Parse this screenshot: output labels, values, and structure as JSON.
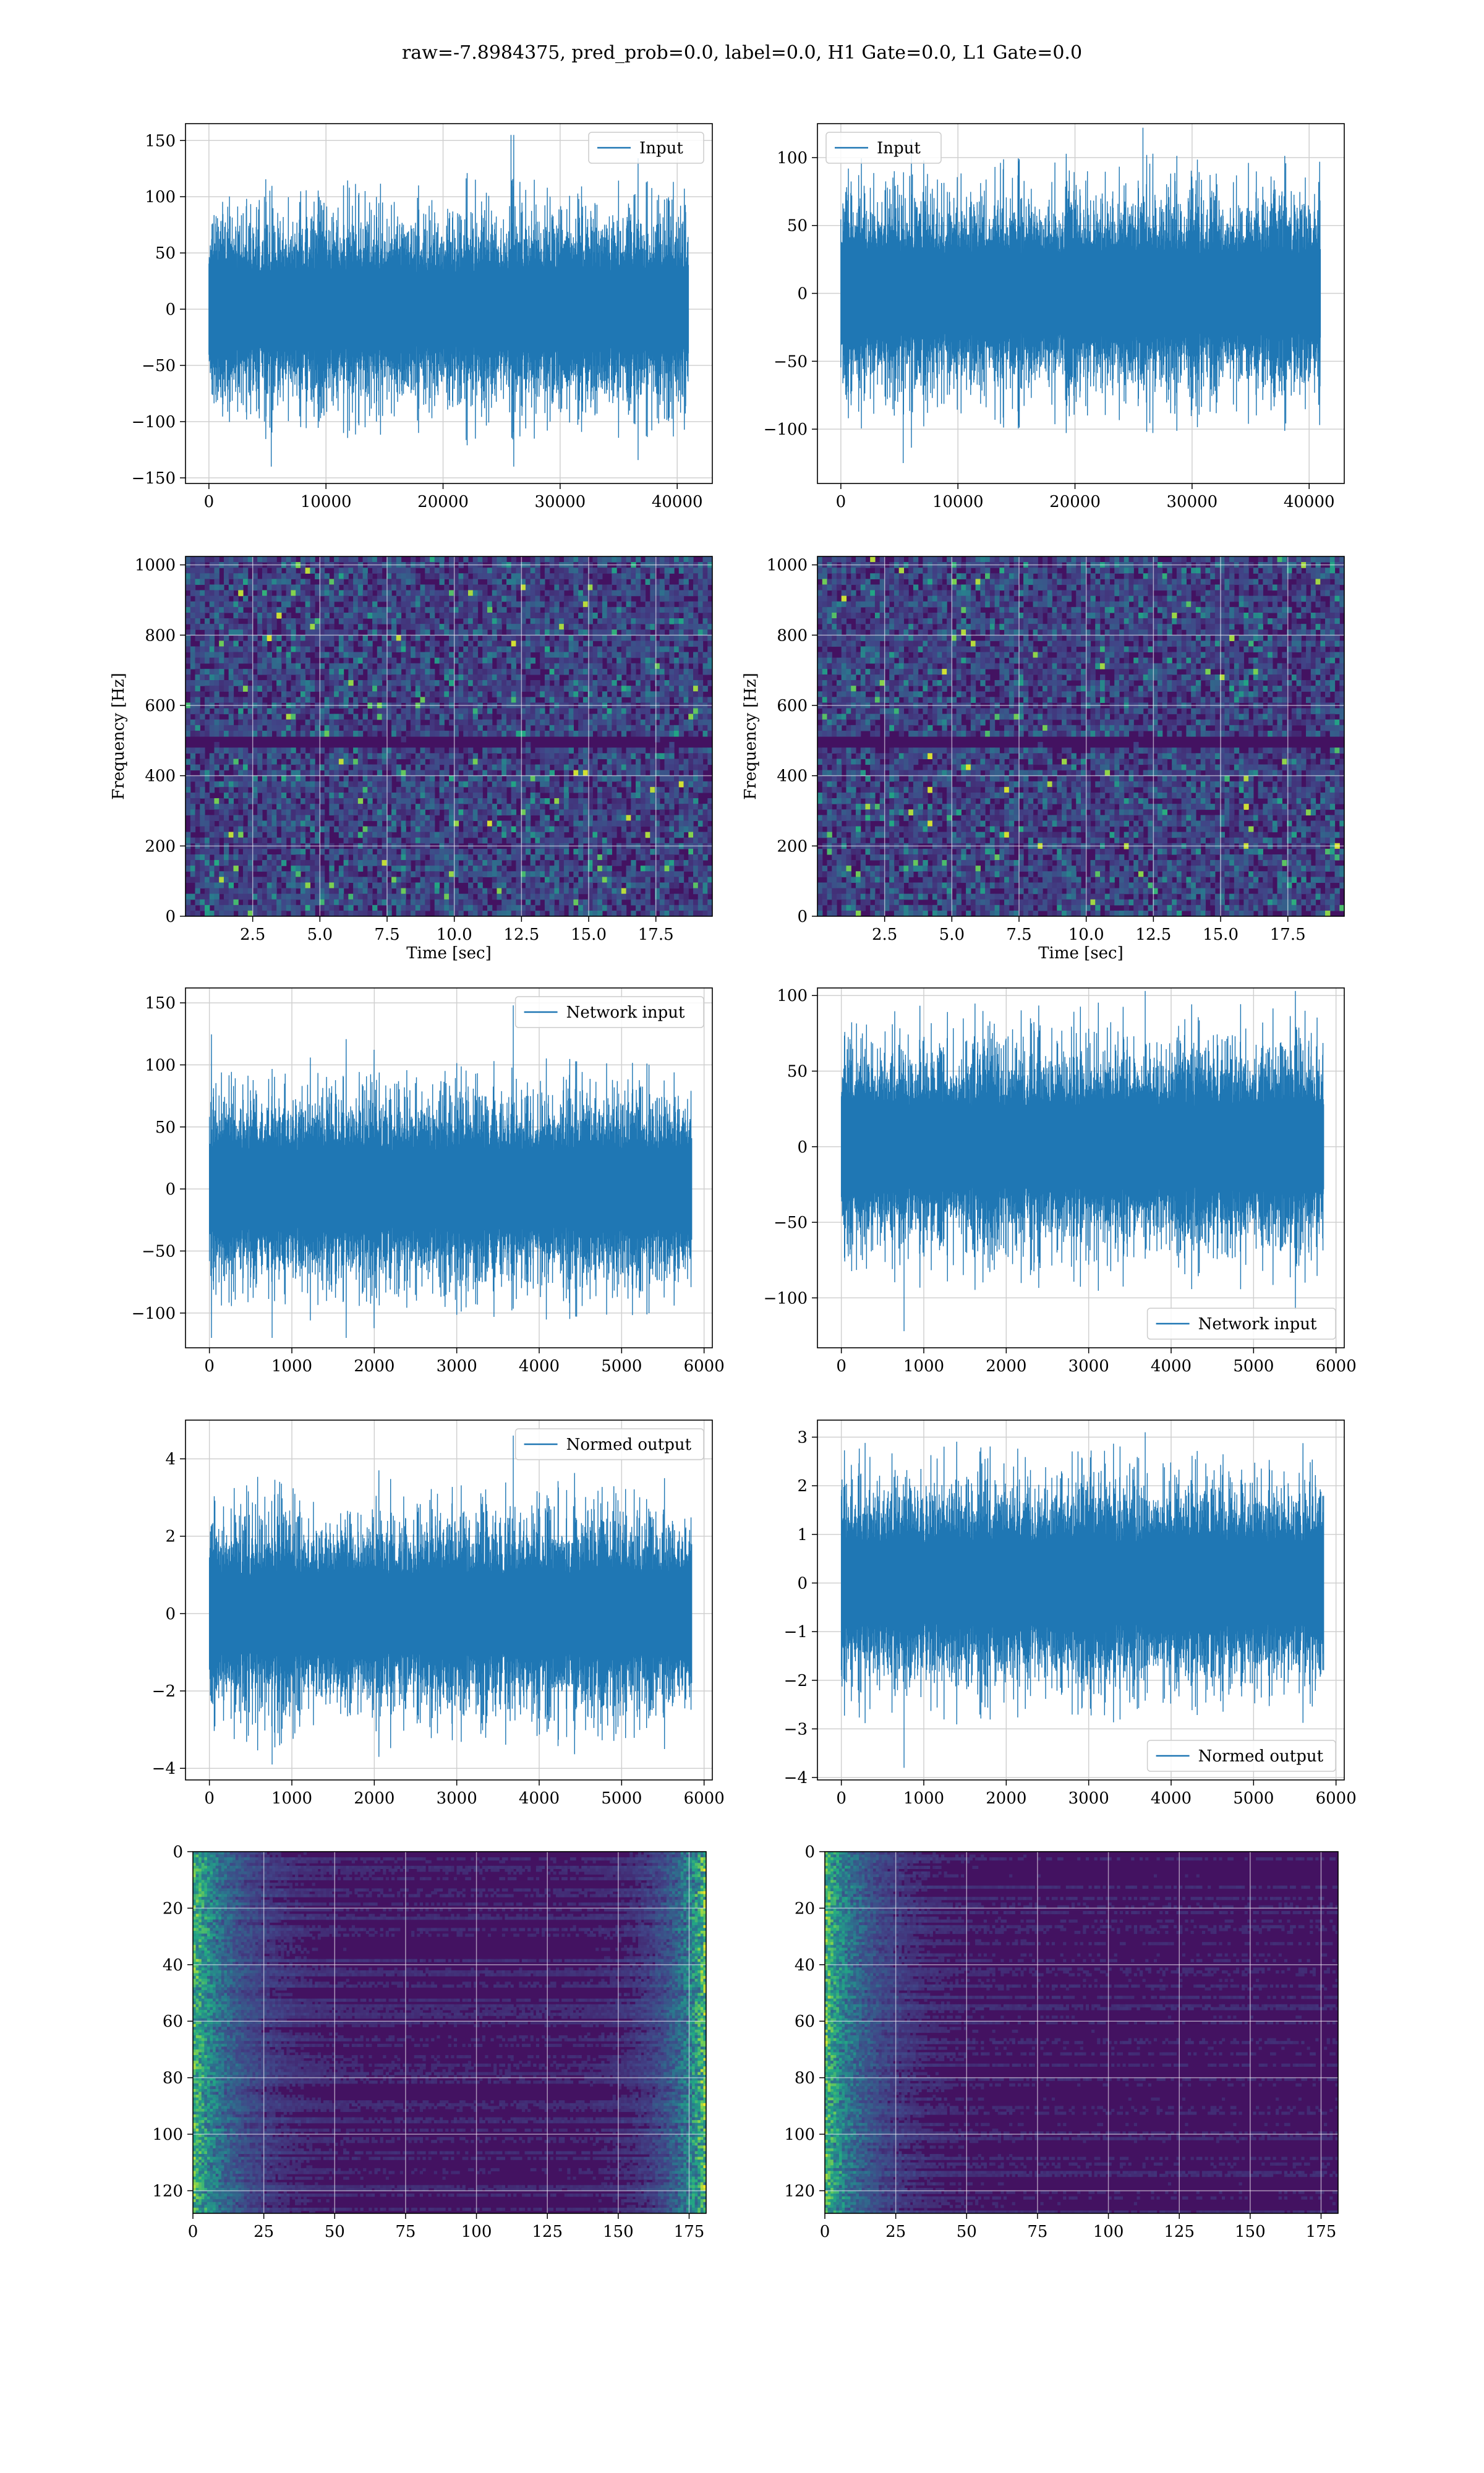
{
  "figure": {
    "title": "raw=-7.8984375, pred_prob=0.0, label=0.0, H1 Gate=0.0, L1 Gate=0.0"
  },
  "colors": {
    "line": "#1f77b4",
    "grid": "#d0d0d0",
    "viridis_dark": "#440154",
    "viridis_mid": "#3b528b",
    "viridis_teal": "#21918c",
    "viridis_green": "#5ec962",
    "viridis_yellow": "#fde725"
  },
  "chart_data": [
    {
      "id": "input-h1",
      "type": "line",
      "legend": "Input",
      "legend_placement": "upper-right",
      "xlim": [
        -2000,
        43000
      ],
      "ylim": [
        -155,
        165
      ],
      "xticks": [
        0,
        10000,
        20000,
        30000,
        40000
      ],
      "xtick_labels": [
        "0",
        "10000",
        "20000",
        "30000",
        "40000"
      ],
      "yticks": [
        -150,
        -100,
        -50,
        0,
        50,
        100,
        150
      ],
      "ytick_labels": [
        "−150",
        "−100",
        "−50",
        "0",
        "50",
        "100",
        "150"
      ],
      "xlabel": "",
      "ylabel": "",
      "grid": true,
      "signal": {
        "x_start": 0,
        "x_end": 40960,
        "band": 60,
        "peak": 155,
        "trough": -140,
        "seed": 11
      }
    },
    {
      "id": "input-l1",
      "type": "line",
      "legend": "Input",
      "legend_placement": "upper-left",
      "xlim": [
        -2000,
        43000
      ],
      "ylim": [
        -140,
        125
      ],
      "xticks": [
        0,
        10000,
        20000,
        30000,
        40000
      ],
      "xtick_labels": [
        "0",
        "10000",
        "20000",
        "30000",
        "40000"
      ],
      "yticks": [
        -100,
        -50,
        0,
        50,
        100
      ],
      "ytick_labels": [
        "−100",
        "−50",
        "0",
        "50",
        "100"
      ],
      "xlabel": "",
      "ylabel": "",
      "grid": true,
      "signal": {
        "x_start": 0,
        "x_end": 40960,
        "band": 52,
        "peak": 122,
        "trough": -125,
        "seed": 23
      }
    },
    {
      "id": "spectrogram-h1",
      "type": "heatmap",
      "xlim": [
        0,
        19.6
      ],
      "ylim": [
        0,
        1024
      ],
      "xticks": [
        2.5,
        5.0,
        7.5,
        10.0,
        12.5,
        15.0,
        17.5
      ],
      "xtick_labels": [
        "2.5",
        "5.0",
        "7.5",
        "10.0",
        "12.5",
        "15.0",
        "17.5"
      ],
      "yticks": [
        0,
        200,
        400,
        600,
        800,
        1000
      ],
      "ytick_labels": [
        "0",
        "200",
        "400",
        "600",
        "800",
        "1000"
      ],
      "xlabel": "Time [sec]",
      "ylabel": "Frequency [Hz]",
      "grid": true,
      "cells": {
        "cols": 110,
        "rows": 64,
        "seed": 31,
        "dark_band_hz": [
          480,
          520
        ]
      }
    },
    {
      "id": "spectrogram-l1",
      "type": "heatmap",
      "xlim": [
        0,
        19.6
      ],
      "ylim": [
        0,
        1024
      ],
      "xticks": [
        2.5,
        5.0,
        7.5,
        10.0,
        12.5,
        15.0,
        17.5
      ],
      "xtick_labels": [
        "2.5",
        "5.0",
        "7.5",
        "10.0",
        "12.5",
        "15.0",
        "17.5"
      ],
      "yticks": [
        0,
        200,
        400,
        600,
        800,
        1000
      ],
      "ytick_labels": [
        "0",
        "200",
        "400",
        "600",
        "800",
        "1000"
      ],
      "xlabel": "Time [sec]",
      "ylabel": "Frequency [Hz]",
      "grid": true,
      "cells": {
        "cols": 110,
        "rows": 64,
        "seed": 47,
        "dark_band_hz": [
          480,
          520
        ]
      }
    },
    {
      "id": "network-input-h1",
      "type": "line",
      "legend": "Network input",
      "legend_placement": "upper-right",
      "xlim": [
        -290,
        6100
      ],
      "ylim": [
        -128,
        162
      ],
      "xticks": [
        0,
        1000,
        2000,
        3000,
        4000,
        5000,
        6000
      ],
      "xtick_labels": [
        "0",
        "1000",
        "2000",
        "3000",
        "4000",
        "5000",
        "6000"
      ],
      "yticks": [
        -100,
        -50,
        0,
        50,
        100,
        150
      ],
      "ytick_labels": [
        "−100",
        "−50",
        "0",
        "50",
        "100",
        "150"
      ],
      "xlabel": "",
      "ylabel": "",
      "grid": true,
      "signal": {
        "x_start": 0,
        "x_end": 5850,
        "band": 55,
        "peak": 148,
        "trough": -120,
        "seed": 59
      }
    },
    {
      "id": "network-input-l1",
      "type": "line",
      "legend": "Network input",
      "legend_placement": "lower-right",
      "xlim": [
        -290,
        6100
      ],
      "ylim": [
        -133,
        105
      ],
      "xticks": [
        0,
        1000,
        2000,
        3000,
        4000,
        5000,
        6000
      ],
      "xtick_labels": [
        "0",
        "1000",
        "2000",
        "3000",
        "4000",
        "5000",
        "6000"
      ],
      "yticks": [
        -100,
        -50,
        0,
        50,
        100
      ],
      "ytick_labels": [
        "−100",
        "−50",
        "0",
        "50",
        "100"
      ],
      "xlabel": "",
      "ylabel": "",
      "grid": true,
      "signal": {
        "x_start": 0,
        "x_end": 5850,
        "band": 48,
        "peak": 103,
        "trough": -122,
        "seed": 71
      }
    },
    {
      "id": "normed-output-h1",
      "type": "line",
      "legend": "Normed output",
      "legend_placement": "upper-right",
      "xlim": [
        -290,
        6100
      ],
      "ylim": [
        -4.3,
        5.0
      ],
      "xticks": [
        0,
        1000,
        2000,
        3000,
        4000,
        5000,
        6000
      ],
      "xtick_labels": [
        "0",
        "1000",
        "2000",
        "3000",
        "4000",
        "5000",
        "6000"
      ],
      "yticks": [
        -4,
        -2,
        0,
        2,
        4
      ],
      "ytick_labels": [
        "−4",
        "−2",
        "0",
        "2",
        "4"
      ],
      "xlabel": "",
      "ylabel": "",
      "grid": true,
      "signal": {
        "x_start": 0,
        "x_end": 5850,
        "band": 1.8,
        "peak": 4.6,
        "trough": -3.9,
        "seed": 83
      }
    },
    {
      "id": "normed-output-l1",
      "type": "line",
      "legend": "Normed output",
      "legend_placement": "lower-right",
      "xlim": [
        -290,
        6100
      ],
      "ylim": [
        -4.05,
        3.35
      ],
      "xticks": [
        0,
        1000,
        2000,
        3000,
        4000,
        5000,
        6000
      ],
      "xtick_labels": [
        "0",
        "1000",
        "2000",
        "3000",
        "4000",
        "5000",
        "6000"
      ],
      "yticks": [
        -4,
        -3,
        -2,
        -1,
        0,
        1,
        2,
        3
      ],
      "ytick_labels": [
        "−4",
        "−3",
        "−2",
        "−1",
        "0",
        "1",
        "2",
        "3"
      ],
      "xlabel": "",
      "ylabel": "",
      "grid": true,
      "signal": {
        "x_start": 0,
        "x_end": 5850,
        "band": 1.5,
        "peak": 3.1,
        "trough": -3.8,
        "seed": 97
      }
    },
    {
      "id": "feature-map-h1",
      "type": "heatmap",
      "xlim": [
        0,
        181
      ],
      "ylim": [
        128,
        0
      ],
      "xticks": [
        0,
        25,
        50,
        75,
        100,
        125,
        150,
        175
      ],
      "xtick_labels": [
        "0",
        "25",
        "50",
        "75",
        "100",
        "125",
        "150",
        "175"
      ],
      "yticks": [
        0,
        20,
        40,
        60,
        80,
        100,
        120
      ],
      "ytick_labels": [
        "0",
        "20",
        "40",
        "60",
        "80",
        "100",
        "120"
      ],
      "xlabel": "",
      "ylabel": "",
      "grid": true,
      "cells": {
        "cols": 181,
        "rows": 128,
        "seed": 109,
        "edge_energy": "both"
      }
    },
    {
      "id": "feature-map-l1",
      "type": "heatmap",
      "xlim": [
        0,
        181
      ],
      "ylim": [
        128,
        0
      ],
      "xticks": [
        0,
        25,
        50,
        75,
        100,
        125,
        150,
        175
      ],
      "xtick_labels": [
        "0",
        "25",
        "50",
        "75",
        "100",
        "125",
        "150",
        "175"
      ],
      "yticks": [
        0,
        20,
        40,
        60,
        80,
        100,
        120
      ],
      "ytick_labels": [
        "0",
        "20",
        "40",
        "60",
        "80",
        "100",
        "120"
      ],
      "xlabel": "",
      "ylabel": "",
      "grid": true,
      "cells": {
        "cols": 181,
        "rows": 128,
        "seed": 127,
        "edge_energy": "left"
      }
    }
  ]
}
